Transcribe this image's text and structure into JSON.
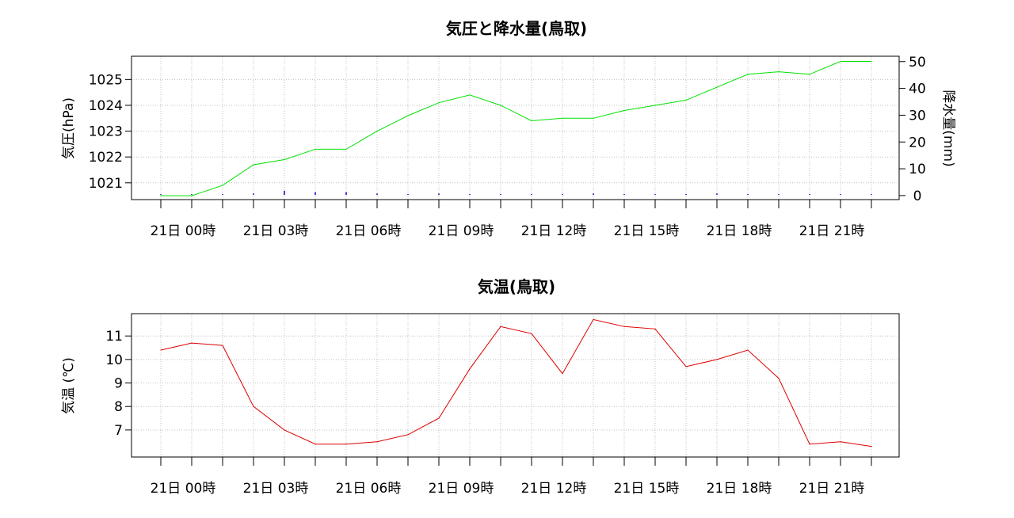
{
  "chart_data": [
    {
      "type": "line",
      "title": "気圧と降水量(鳥取)",
      "ylabel": "気圧(hPa)",
      "y2label": "降水量(mm)",
      "x_tick_labels": [
        "21日 00時",
        "21日 03時",
        "21日 06時",
        "21日 09時",
        "21日 12時",
        "21日 15時",
        "21日 18時",
        "21日 21時"
      ],
      "ylim": [
        1020.35,
        1025.9
      ],
      "yticks": [
        1021,
        1022,
        1023,
        1024,
        1025
      ],
      "y2lim": [
        -1.5,
        52
      ],
      "y2ticks": [
        0,
        10,
        20,
        30,
        40,
        50
      ],
      "grid": true,
      "series": [
        {
          "axis": "left",
          "color": "#00e000",
          "x": [
            0,
            1,
            2,
            3,
            4,
            5,
            6,
            7,
            8,
            9,
            10,
            11,
            12,
            13,
            14,
            15,
            16,
            17,
            18,
            19,
            20,
            21,
            22,
            23
          ],
          "values": [
            1020.5,
            1020.5,
            1020.9,
            1021.7,
            1021.9,
            1022.3,
            1022.3,
            1023.0,
            1023.6,
            1024.1,
            1024.4,
            1024.0,
            1023.4,
            1023.5,
            1023.5,
            1023.8,
            1024.0,
            1024.2,
            1024.7,
            1025.2,
            1025.3,
            1025.2,
            1025.7,
            1025.7
          ]
        },
        {
          "axis": "right",
          "type": "bar",
          "color": "#0000cc",
          "x": [
            0,
            1,
            2,
            3,
            4,
            5,
            6,
            7,
            8,
            9,
            10,
            11,
            12,
            13,
            14,
            15,
            16,
            17,
            18,
            19,
            20,
            21,
            22,
            23
          ],
          "values": [
            0,
            0,
            0,
            0.5,
            1.5,
            1.0,
            1.0,
            0.5,
            0,
            0.5,
            0,
            0,
            0,
            0,
            0.5,
            0,
            0,
            0,
            0.5,
            0,
            0,
            0,
            0,
            0
          ]
        }
      ]
    },
    {
      "type": "line",
      "title": "気温(鳥取)",
      "ylabel": "気温 (℃)",
      "x_tick_labels": [
        "21日 00時",
        "21日 03時",
        "21日 06時",
        "21日 09時",
        "21日 12時",
        "21日 15時",
        "21日 18時",
        "21日 21時"
      ],
      "ylim": [
        5.85,
        11.95
      ],
      "yticks": [
        7,
        8,
        9,
        10,
        11
      ],
      "grid": true,
      "series": [
        {
          "color": "#dd0000",
          "x": [
            0,
            1,
            2,
            3,
            4,
            5,
            6,
            7,
            8,
            9,
            10,
            11,
            12,
            13,
            14,
            15,
            16,
            17,
            18,
            19,
            20,
            21,
            22,
            23
          ],
          "values": [
            10.4,
            10.7,
            10.6,
            8.0,
            7.0,
            6.4,
            6.4,
            6.5,
            6.8,
            7.5,
            9.6,
            11.4,
            11.1,
            9.4,
            11.7,
            11.4,
            11.3,
            9.7,
            10.0,
            10.4,
            9.2,
            6.4,
            6.5,
            6.3
          ]
        }
      ]
    }
  ]
}
